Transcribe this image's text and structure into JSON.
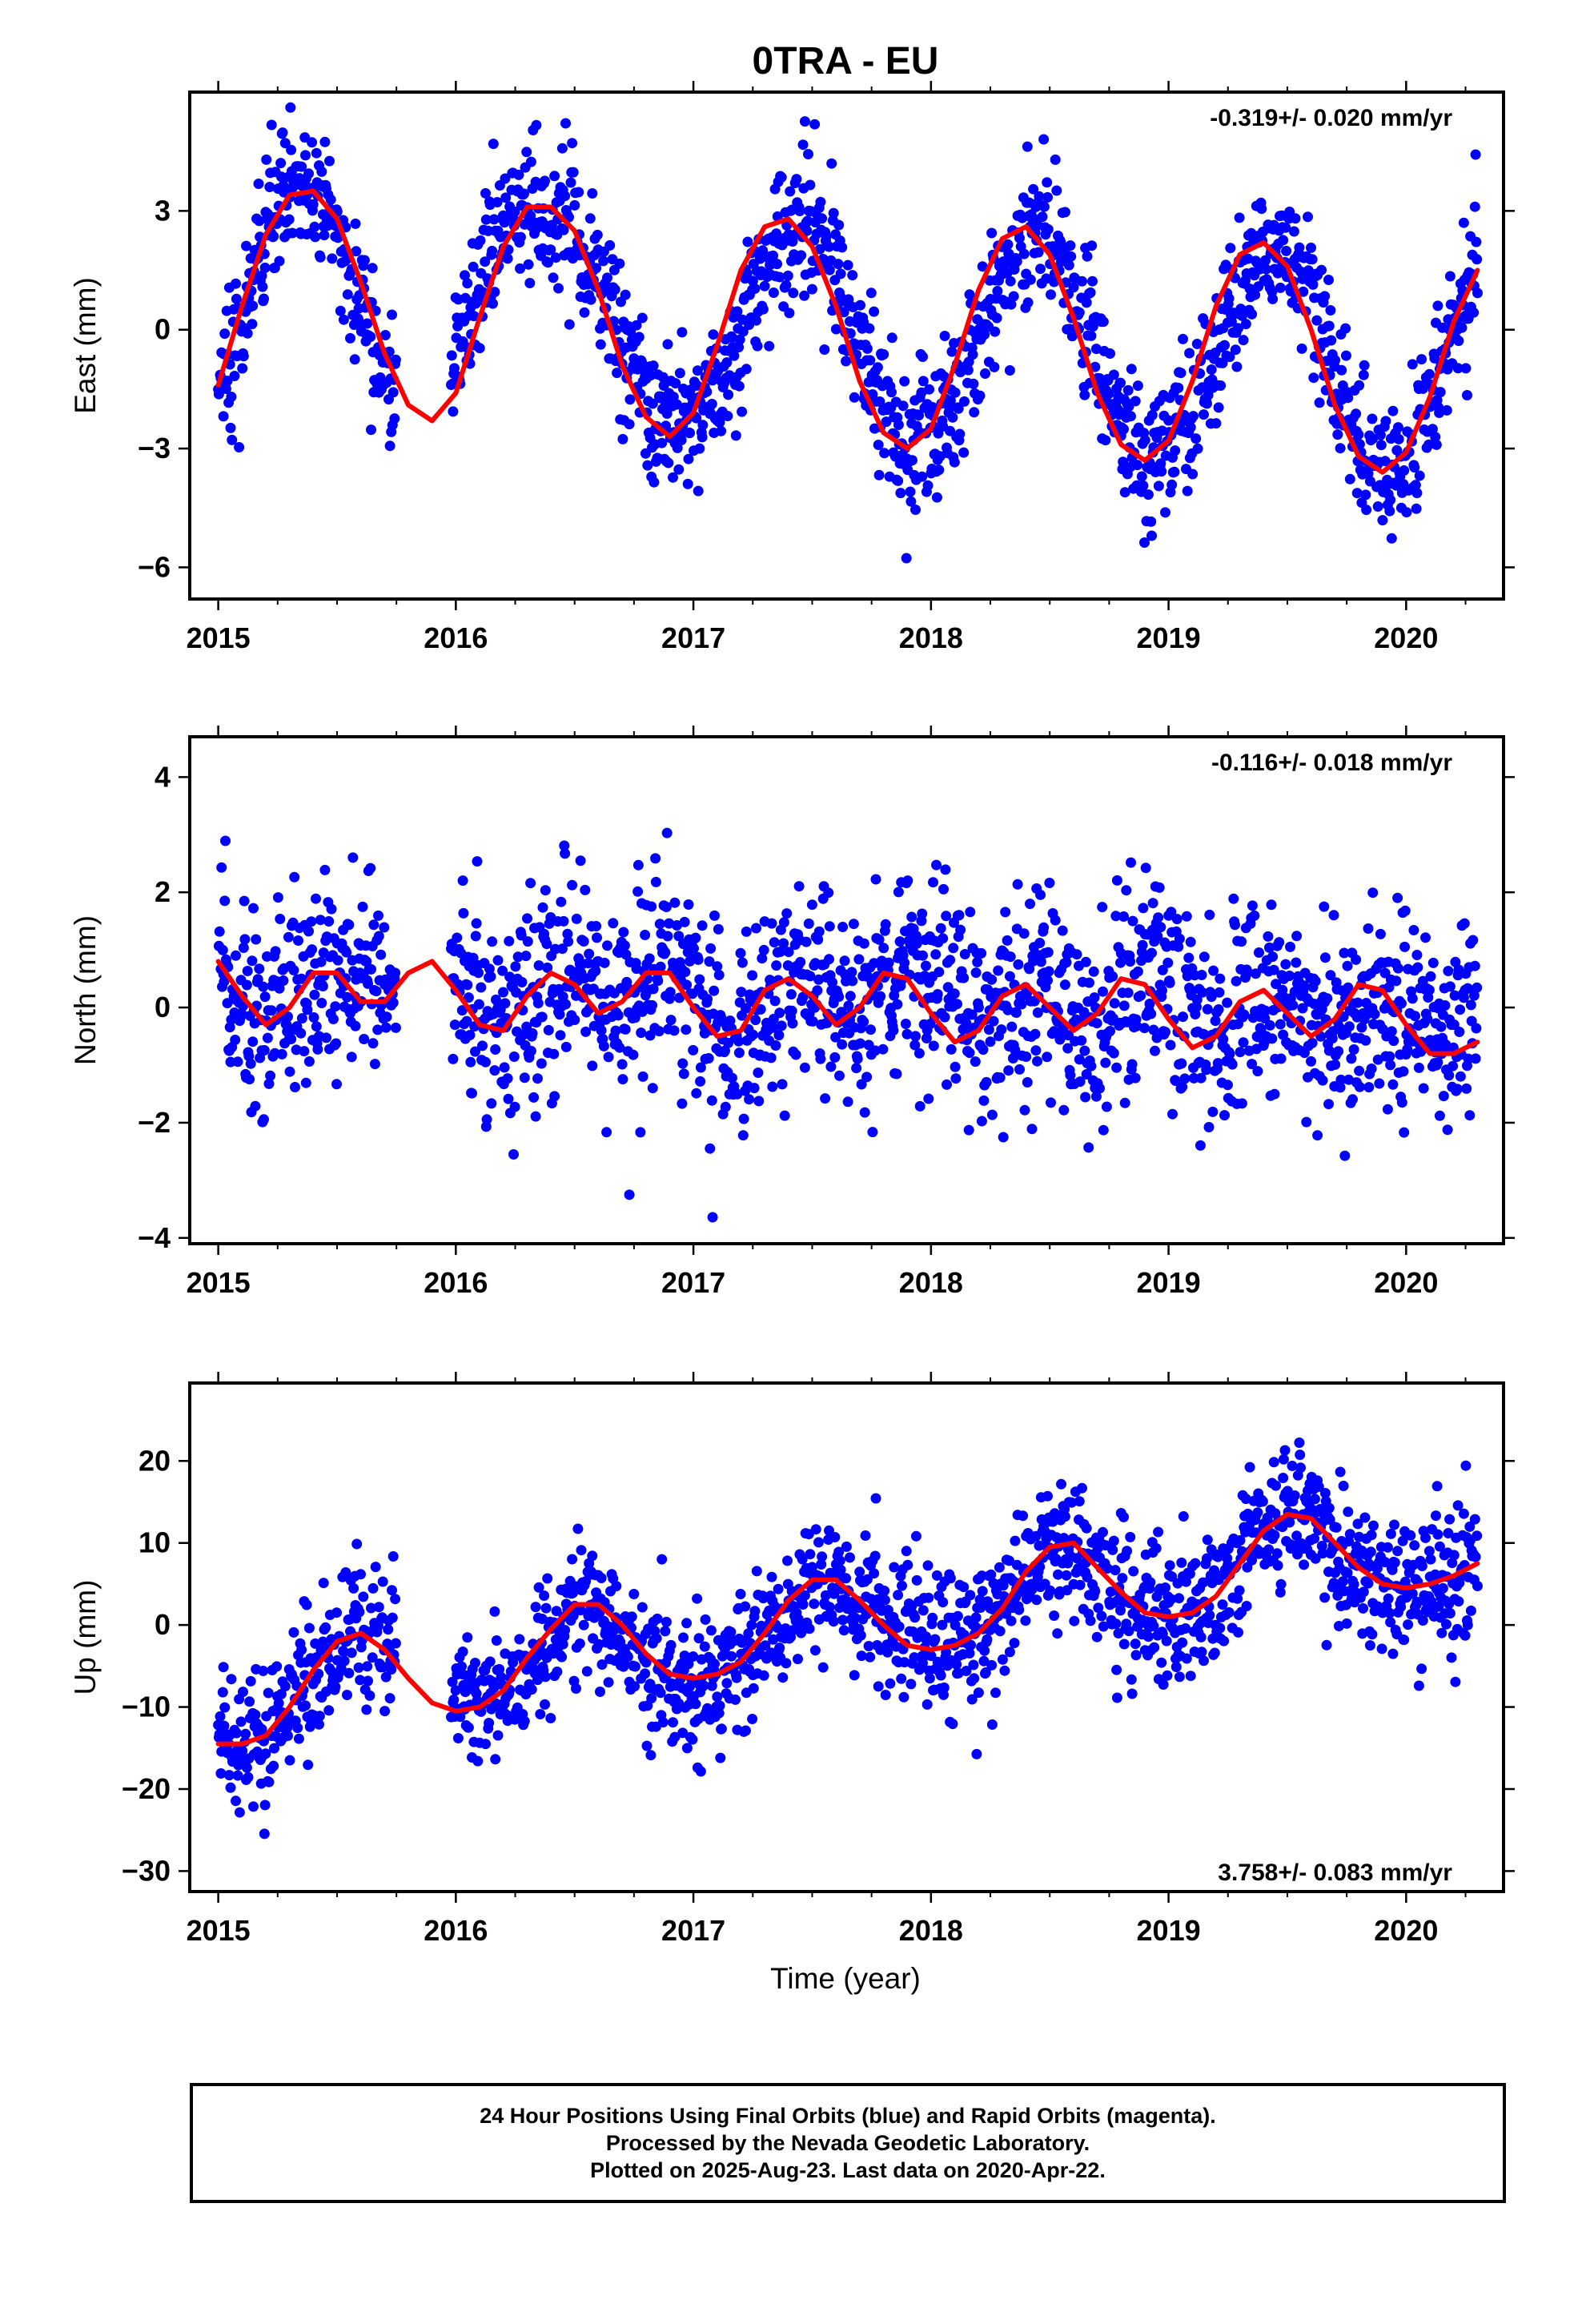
{
  "title": "0TRA - EU",
  "xlabel": "Time (year)",
  "caption": {
    "line1": "24 Hour Positions Using Final Orbits (blue) and Rapid Orbits (magenta).",
    "line2": "Processed by the Nevada Geodetic Laboratory.",
    "line3": "Plotted on 2025-Aug-23. Last data on 2020-Apr-22."
  },
  "colors": {
    "points": "#0000ff",
    "fit": "#ff0000",
    "axes": "#000000"
  },
  "chart_data": [
    {
      "type": "scatter",
      "ylabel": "East (mm)",
      "rate_label": "-0.319+/- 0.020 mm/yr",
      "rate_position": "top-right",
      "xlim": [
        2014.88,
        2020.41
      ],
      "ylim": [
        -6.8,
        6.0
      ],
      "xticks": [
        2015,
        2016,
        2017,
        2018,
        2019,
        2020
      ],
      "yticks": [
        -6,
        -3,
        0,
        3
      ],
      "series": [
        {
          "kind": "points",
          "x": [
            2015.0,
            2015.1,
            2015.2,
            2015.3,
            2015.4,
            2015.5,
            2015.6,
            2015.7,
            2016.0,
            2016.1,
            2016.2,
            2016.3,
            2016.4,
            2016.5,
            2016.6,
            2016.7,
            2016.8,
            2016.9,
            2017.0,
            2017.1,
            2017.2,
            2017.3,
            2017.4,
            2017.5,
            2017.6,
            2017.7,
            2017.8,
            2017.9,
            2018.0,
            2018.1,
            2018.2,
            2018.3,
            2018.4,
            2018.5,
            2018.6,
            2018.7,
            2018.8,
            2018.9,
            2019.0,
            2019.1,
            2019.2,
            2019.3,
            2019.4,
            2019.5,
            2019.6,
            2019.7,
            2019.8,
            2019.9,
            2020.0,
            2020.1,
            2020.2,
            2020.3
          ],
          "y": [
            -1.5,
            0.2,
            2.3,
            3.4,
            3.5,
            2.7,
            0.6,
            -1.3,
            -0.8,
            1.2,
            2.6,
            3.1,
            3.1,
            2.5,
            1.3,
            -0.5,
            -1.8,
            -2.6,
            -2.4,
            -1.5,
            0.0,
            1.6,
            2.7,
            2.8,
            1.6,
            -0.3,
            -2.0,
            -3.0,
            -2.7,
            -1.7,
            -0.2,
            1.5,
            2.5,
            2.4,
            1.2,
            -0.7,
            -2.5,
            -3.3,
            -3.0,
            -2.0,
            -0.6,
            1.0,
            2.0,
            2.1,
            0.9,
            -1.2,
            -3.0,
            -3.6,
            -3.3,
            -1.9,
            0.0,
            1.6
          ],
          "noise_sd": 0.9
        },
        {
          "kind": "fit",
          "x": [
            2015.0,
            2015.1,
            2015.2,
            2015.3,
            2015.4,
            2015.5,
            2015.6,
            2015.7,
            2015.8,
            2015.9,
            2016.0,
            2016.1,
            2016.2,
            2016.3,
            2016.4,
            2016.5,
            2016.6,
            2016.7,
            2016.8,
            2016.9,
            2017.0,
            2017.1,
            2017.2,
            2017.3,
            2017.4,
            2017.5,
            2017.6,
            2017.7,
            2017.8,
            2017.9,
            2018.0,
            2018.1,
            2018.2,
            2018.3,
            2018.4,
            2018.5,
            2018.6,
            2018.7,
            2018.8,
            2018.9,
            2019.0,
            2019.1,
            2019.2,
            2019.3,
            2019.4,
            2019.5,
            2019.6,
            2019.7,
            2019.8,
            2019.9,
            2020.0,
            2020.1,
            2020.2,
            2020.3
          ],
          "y": [
            -1.4,
            0.6,
            2.4,
            3.4,
            3.5,
            2.8,
            1.2,
            -0.6,
            -1.9,
            -2.3,
            -1.6,
            0.3,
            2.1,
            3.1,
            3.1,
            2.5,
            1.0,
            -0.9,
            -2.2,
            -2.7,
            -2.1,
            -0.4,
            1.5,
            2.6,
            2.8,
            2.1,
            0.6,
            -1.3,
            -2.6,
            -3.0,
            -2.5,
            -0.9,
            1.0,
            2.3,
            2.6,
            1.9,
            0.3,
            -1.6,
            -2.9,
            -3.3,
            -2.8,
            -1.3,
            0.6,
            1.9,
            2.2,
            1.6,
            0.0,
            -1.9,
            -3.2,
            -3.6,
            -3.1,
            -1.7,
            0.2,
            1.5
          ]
        }
      ]
    },
    {
      "type": "scatter",
      "ylabel": "North (mm)",
      "rate_label": "-0.116+/- 0.018 mm/yr",
      "rate_position": "top-right",
      "xlim": [
        2014.88,
        2020.41
      ],
      "ylim": [
        -4.1,
        4.7
      ],
      "xticks": [
        2015,
        2016,
        2017,
        2018,
        2019,
        2020
      ],
      "yticks": [
        -4,
        -2,
        0,
        2,
        4
      ],
      "series": [
        {
          "kind": "points",
          "x": [
            2015.0,
            2015.1,
            2015.2,
            2015.3,
            2015.4,
            2015.5,
            2015.6,
            2015.7,
            2016.0,
            2016.1,
            2016.2,
            2016.3,
            2016.4,
            2016.5,
            2016.6,
            2016.7,
            2016.8,
            2016.9,
            2017.0,
            2017.1,
            2017.2,
            2017.3,
            2017.4,
            2017.5,
            2017.6,
            2017.7,
            2017.8,
            2017.9,
            2018.0,
            2018.1,
            2018.2,
            2018.3,
            2018.4,
            2018.5,
            2018.6,
            2018.7,
            2018.8,
            2018.9,
            2019.0,
            2019.1,
            2019.2,
            2019.3,
            2019.4,
            2019.5,
            2019.6,
            2019.7,
            2019.8,
            2019.9,
            2020.0,
            2020.1,
            2020.2,
            2020.3
          ],
          "y": [
            0.6,
            0.1,
            -0.3,
            0.2,
            0.6,
            0.7,
            0.5,
            0.2,
            0.6,
            0.0,
            -0.4,
            0.0,
            0.5,
            0.6,
            0.2,
            0.0,
            0.4,
            0.7,
            0.2,
            -0.5,
            -0.5,
            0.1,
            0.4,
            0.5,
            0.0,
            -0.2,
            0.3,
            0.6,
            0.4,
            0.3,
            -0.5,
            -0.2,
            0.3,
            0.2,
            -0.2,
            -0.4,
            0.2,
            0.5,
            0.5,
            -0.4,
            -0.7,
            0.0,
            0.2,
            0.1,
            -0.3,
            -0.5,
            0.0,
            0.3,
            0.0,
            -0.3,
            -0.6,
            0.3
          ],
          "noise_sd": 0.85
        },
        {
          "kind": "fit",
          "x": [
            2015.0,
            2015.1,
            2015.2,
            2015.3,
            2015.4,
            2015.5,
            2015.6,
            2015.7,
            2015.8,
            2015.9,
            2016.0,
            2016.1,
            2016.2,
            2016.3,
            2016.4,
            2016.5,
            2016.6,
            2016.7,
            2016.8,
            2016.9,
            2017.0,
            2017.1,
            2017.2,
            2017.3,
            2017.4,
            2017.5,
            2017.6,
            2017.7,
            2017.8,
            2017.9,
            2018.0,
            2018.1,
            2018.2,
            2018.3,
            2018.4,
            2018.5,
            2018.6,
            2018.7,
            2018.8,
            2018.9,
            2019.0,
            2019.1,
            2019.2,
            2019.3,
            2019.4,
            2019.5,
            2019.6,
            2019.7,
            2019.8,
            2019.9,
            2020.0,
            2020.1,
            2020.2,
            2020.3
          ],
          "y": [
            0.8,
            0.2,
            -0.3,
            0.0,
            0.6,
            0.6,
            0.1,
            0.1,
            0.6,
            0.8,
            0.3,
            -0.3,
            -0.4,
            0.2,
            0.6,
            0.4,
            -0.1,
            0.1,
            0.6,
            0.6,
            0.0,
            -0.5,
            -0.4,
            0.3,
            0.5,
            0.2,
            -0.3,
            0.0,
            0.6,
            0.5,
            -0.1,
            -0.6,
            -0.4,
            0.2,
            0.4,
            0.0,
            -0.4,
            -0.1,
            0.5,
            0.4,
            -0.2,
            -0.7,
            -0.5,
            0.1,
            0.3,
            -0.1,
            -0.5,
            -0.2,
            0.4,
            0.3,
            -0.3,
            -0.8,
            -0.8,
            -0.6
          ]
        }
      ]
    },
    {
      "type": "scatter",
      "ylabel": "Up (mm)",
      "rate_label": "3.758+/- 0.083 mm/yr",
      "rate_position": "bottom-right",
      "xlim": [
        2014.88,
        2020.41
      ],
      "ylim": [
        -32.5,
        29.5
      ],
      "xticks": [
        2015,
        2016,
        2017,
        2018,
        2019,
        2020
      ],
      "yticks": [
        -30,
        -20,
        -10,
        0,
        10,
        20
      ],
      "series": [
        {
          "kind": "points",
          "x": [
            2015.0,
            2015.1,
            2015.2,
            2015.3,
            2015.4,
            2015.5,
            2015.6,
            2015.7,
            2016.0,
            2016.1,
            2016.2,
            2016.3,
            2016.4,
            2016.5,
            2016.6,
            2016.7,
            2016.8,
            2016.9,
            2017.0,
            2017.1,
            2017.2,
            2017.3,
            2017.4,
            2017.5,
            2017.6,
            2017.7,
            2017.8,
            2017.9,
            2018.0,
            2018.1,
            2018.2,
            2018.3,
            2018.4,
            2018.5,
            2018.6,
            2018.7,
            2018.8,
            2018.9,
            2019.0,
            2019.1,
            2019.2,
            2019.3,
            2019.4,
            2019.5,
            2019.6,
            2019.7,
            2019.8,
            2019.9,
            2020.0,
            2020.1,
            2020.2,
            2020.3
          ],
          "y": [
            -14,
            -15,
            -14,
            -10,
            -6,
            -3,
            -1,
            -3,
            -10,
            -10,
            -8,
            -5,
            -1,
            2,
            2,
            -1,
            -4,
            -6,
            -8,
            -7,
            -5,
            -2,
            2,
            5,
            5,
            3,
            0,
            -2,
            -3,
            -3,
            -1,
            3,
            7,
            10,
            9,
            6,
            3,
            1,
            1,
            2,
            4,
            8,
            12,
            14,
            13,
            9,
            6,
            5,
            4,
            5,
            6,
            7
          ],
          "noise_sd": 4.2
        },
        {
          "kind": "fit",
          "x": [
            2015.0,
            2015.1,
            2015.2,
            2015.3,
            2015.4,
            2015.5,
            2015.6,
            2015.7,
            2015.8,
            2015.9,
            2016.0,
            2016.1,
            2016.2,
            2016.3,
            2016.4,
            2016.5,
            2016.6,
            2016.7,
            2016.8,
            2016.9,
            2017.0,
            2017.1,
            2017.2,
            2017.3,
            2017.4,
            2017.5,
            2017.6,
            2017.7,
            2017.8,
            2017.9,
            2018.0,
            2018.1,
            2018.2,
            2018.3,
            2018.4,
            2018.5,
            2018.6,
            2018.7,
            2018.8,
            2018.9,
            2019.0,
            2019.1,
            2019.2,
            2019.3,
            2019.4,
            2019.5,
            2019.6,
            2019.7,
            2019.8,
            2019.9,
            2020.0,
            2020.1,
            2020.2,
            2020.3
          ],
          "y": [
            -14.5,
            -14.5,
            -13.5,
            -10,
            -5.5,
            -2,
            -1,
            -3,
            -6.5,
            -9.5,
            -10.5,
            -10,
            -8,
            -4,
            -0.5,
            2.5,
            2.5,
            0,
            -3.5,
            -6,
            -6.5,
            -6,
            -4.5,
            -1,
            3,
            5.5,
            5.5,
            3,
            0,
            -2.5,
            -3,
            -2.5,
            -1,
            2,
            6.5,
            9.5,
            10,
            7,
            4,
            1.5,
            1,
            1.5,
            3.5,
            7.5,
            11.5,
            13.5,
            13,
            10,
            7,
            5,
            4.5,
            5,
            6,
            7.5
          ]
        }
      ]
    }
  ]
}
